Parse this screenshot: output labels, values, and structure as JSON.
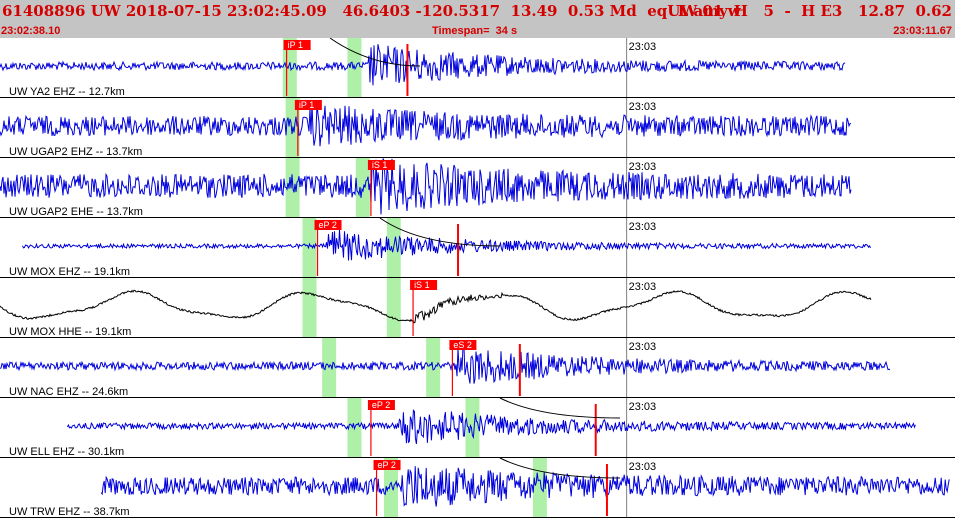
{
  "header": {
    "event_line": "61408896 UW 2018-07-15 23:02:45.09   46.6403 -120.5317  13.49  0.53 Md  eq  L amyw",
    "station_summary": "UW 01  H   5  -  H E3   12.87  0.62",
    "start_time": "23:02:38.10",
    "timespan": "Timespan=  34 s",
    "end_time": "23:03:11.67"
  },
  "colors": {
    "header_bg": "#c4c4c4",
    "header_text": "#d40000",
    "trace_vertical": "#0000dd",
    "trace_horizontal": "#000000",
    "pick_box": "#ff0000",
    "window_band": "#aef0a8",
    "theoretical_curve": "#000000"
  },
  "traces": [
    {
      "label": "UW YA2 EHZ -- 12.7km",
      "time_tick": "23:03",
      "color": "blue",
      "start_s": 0,
      "end_s": 30.1,
      "amp": 4,
      "bands_s": [
        10.1,
        12.4
      ],
      "onset_s": 13.1,
      "onset_amp": 20,
      "picks": [
        {
          "label": "iP 1",
          "time_s": 10.2,
          "boxed": true
        },
        {
          "label": "",
          "time_s": 14.5,
          "boxed": false
        }
      ]
    },
    {
      "label": "UW UGAP2 EHZ -- 13.7km",
      "time_tick": "23:03",
      "color": "blue",
      "start_s": 0,
      "end_s": 30.3,
      "amp": 10,
      "bands_s": [
        10.2
      ],
      "onset_s": 11.0,
      "onset_amp": 14,
      "picks": [
        {
          "label": "iP 1",
          "time_s": 10.6,
          "boxed": true
        }
      ]
    },
    {
      "label": "UW UGAP2 EHE -- 13.7km",
      "time_tick": "23:03",
      "color": "blue",
      "start_s": 0,
      "end_s": 30.3,
      "amp": 12,
      "bands_s": [
        10.2,
        12.7
      ],
      "onset_s": 13.2,
      "onset_amp": 18,
      "picks": [
        {
          "label": "iS 1",
          "time_s": 13.2,
          "boxed": true
        }
      ]
    },
    {
      "label": "UW MOX EHZ -- 19.1km",
      "time_tick": "23:03",
      "color": "blue",
      "start_s": 0.8,
      "end_s": 31.0,
      "amp": 2,
      "bands_s": [
        10.8,
        13.8
      ],
      "onset_s": 11.6,
      "onset_amp": 16,
      "picks": [
        {
          "label": "eP 2",
          "time_s": 11.3,
          "boxed": true
        },
        {
          "label": "",
          "time_s": 16.3,
          "boxed": false
        }
      ]
    },
    {
      "label": "UW MOX HHE -- 19.1km",
      "time_tick": "23:03",
      "color": "black",
      "start_s": 0,
      "end_s": 31.0,
      "amp": 12,
      "bands_s": [
        10.8,
        13.8
      ],
      "onset_s": 14.7,
      "onset_amp": 14,
      "picks": [
        {
          "label": "iS 1",
          "time_s": 14.7,
          "boxed": true
        }
      ]
    },
    {
      "label": "UW NAC EHZ -- 24.6km",
      "time_tick": "23:03",
      "color": "blue",
      "start_s": 0,
      "end_s": 31.7,
      "amp": 4,
      "bands_s": [
        11.5,
        15.2
      ],
      "onset_s": 16.2,
      "onset_amp": 18,
      "picks": [
        {
          "label": "eS 2",
          "time_s": 16.1,
          "boxed": true
        },
        {
          "label": "",
          "time_s": 18.5,
          "boxed": false
        }
      ]
    },
    {
      "label": "UW ELL EHZ -- 30.1km",
      "time_tick": "23:03",
      "color": "blue",
      "start_s": 2.4,
      "end_s": 32.6,
      "amp": 3,
      "bands_s": [
        12.4,
        16.6
      ],
      "onset_s": 14.2,
      "onset_amp": 18,
      "picks": [
        {
          "label": "eP 2",
          "time_s": 13.2,
          "boxed": true
        },
        {
          "label": "",
          "time_s": 21.2,
          "boxed": false
        }
      ]
    },
    {
      "label": "UW TRW EHZ -- 38.7km",
      "time_tick": "23:03",
      "color": "blue",
      "start_s": 3.6,
      "end_s": 33.8,
      "amp": 9,
      "bands_s": [
        13.7,
        19.0
      ],
      "onset_s": 14.3,
      "onset_amp": 16,
      "picks": [
        {
          "label": "eP 2",
          "time_s": 13.4,
          "boxed": true
        },
        {
          "label": "",
          "time_s": 21.6,
          "boxed": false
        }
      ]
    }
  ]
}
